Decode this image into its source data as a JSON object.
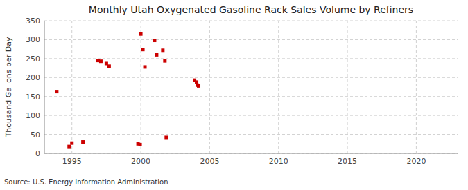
{
  "chart_data": {
    "type": "scatter",
    "title": "Monthly Utah Oxygenated Gasoline Rack Sales Volume by Refiners",
    "ylabel": "Thousand Gallons per Day",
    "source": "Source: U.S. Energy Information Administration",
    "x": [
      1993.9,
      1994.8,
      1995.0,
      1995.8,
      1996.9,
      1997.1,
      1997.5,
      1997.7,
      1999.8,
      1999.95,
      2000.0,
      2000.15,
      2000.3,
      2001.0,
      2001.15,
      2001.6,
      2001.75,
      2001.85,
      2003.9,
      2004.05,
      2004.1,
      2004.2
    ],
    "values": [
      163,
      18,
      27,
      30,
      245,
      243,
      237,
      230,
      25,
      23,
      315,
      274,
      228,
      298,
      260,
      272,
      244,
      42,
      193,
      188,
      180,
      178
    ],
    "color": "#cc0000",
    "marker": "square",
    "xlim": [
      1993,
      2023
    ],
    "ylim": [
      0,
      350
    ],
    "xticks": [
      1995,
      2000,
      2005,
      2010,
      2015,
      2020
    ],
    "yticks": [
      0,
      50,
      100,
      150,
      200,
      250,
      300,
      350
    ],
    "grid": true
  }
}
